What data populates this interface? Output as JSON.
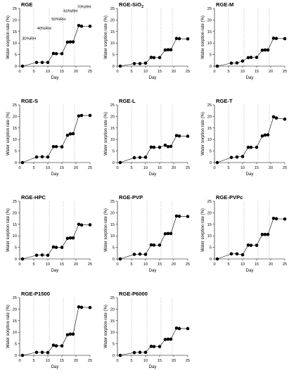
{
  "chart_data": [
    {
      "type": "line",
      "title": "RGE",
      "xlabel": "Day",
      "ylabel": "Water sorption rate (%)",
      "xlim": [
        0,
        25
      ],
      "ylim": [
        0,
        25
      ],
      "xticks": [
        "0",
        "5",
        "10",
        "15",
        "20",
        "25"
      ],
      "yticks": [
        "0",
        "5",
        "10",
        "15",
        "20",
        "25"
      ],
      "stage_boundaries": [
        5,
        10.5,
        15.5,
        19.5
      ],
      "stage_labels": [
        {
          "text": "30%RH",
          "x": 0.8,
          "y": 11.5
        },
        {
          "text": "40%RH",
          "x": 6.2,
          "y": 15.8
        },
        {
          "text": "50%RH",
          "x": 11.3,
          "y": 19.8
        },
        {
          "text": "60%RH",
          "x": 15.6,
          "y": 23.3
        },
        {
          "text": "70%RH",
          "x": 20.4,
          "y": 25.2
        }
      ],
      "series": [
        {
          "x": [
            1,
            6,
            8,
            10,
            12,
            13,
            15,
            17,
            18,
            19,
            21,
            22,
            25
          ],
          "y": [
            0,
            1.6,
            1.6,
            1.6,
            5.5,
            5.4,
            5.4,
            10.4,
            10.5,
            10.5,
            17.6,
            17.3,
            17.3
          ]
        }
      ]
    },
    {
      "type": "line",
      "title": "RGE-SiO",
      "title_subscript": "2",
      "xlabel": "Day",
      "ylabel": "Water sorption rate (%)",
      "xlim": [
        0,
        25
      ],
      "ylim": [
        0,
        25
      ],
      "xticks": [
        "0",
        "5",
        "10",
        "15",
        "20",
        "25"
      ],
      "yticks": [
        "0",
        "5",
        "10",
        "15",
        "20",
        "25"
      ],
      "stage_boundaries": [
        5,
        10.5,
        15.5,
        19.5
      ],
      "series": [
        {
          "x": [
            1,
            6,
            8,
            10,
            12,
            13,
            15,
            17,
            18,
            19,
            21,
            22,
            25
          ],
          "y": [
            0,
            1.1,
            1.1,
            1.3,
            3.8,
            3.7,
            3.7,
            7.0,
            7.1,
            7.1,
            12.0,
            11.9,
            11.8
          ]
        }
      ]
    },
    {
      "type": "line",
      "title": "RGE-M",
      "xlabel": "Day",
      "ylabel": "Water sorption rate (%)",
      "xlim": [
        0,
        25
      ],
      "ylim": [
        0,
        25
      ],
      "xticks": [
        "0",
        "5",
        "10",
        "15",
        "20",
        "25"
      ],
      "yticks": [
        "0",
        "5",
        "10",
        "15",
        "20",
        "25"
      ],
      "stage_boundaries": [
        5,
        10.5,
        15.5,
        19.5
      ],
      "series": [
        {
          "x": [
            1,
            6,
            8,
            10,
            12,
            13,
            15,
            17,
            18,
            19,
            21,
            22,
            25
          ],
          "y": [
            0,
            1.3,
            1.4,
            2.2,
            3.7,
            3.8,
            3.8,
            6.9,
            7.0,
            7.0,
            12.1,
            12.0,
            11.9
          ]
        }
      ]
    },
    {
      "type": "line",
      "title": "RGE-S",
      "xlabel": "Day",
      "ylabel": "Water sorption rate (%)",
      "xlim": [
        0,
        25
      ],
      "ylim": [
        0,
        25
      ],
      "xticks": [
        "0",
        "5",
        "10",
        "15",
        "20",
        "25"
      ],
      "yticks": [
        "0",
        "5",
        "10",
        "15",
        "20",
        "25"
      ],
      "stage_boundaries": [
        5,
        10.5,
        15.5,
        19.5
      ],
      "series": [
        {
          "x": [
            1,
            6,
            8,
            10,
            12,
            13,
            15,
            17,
            18,
            19,
            21,
            22,
            25
          ],
          "y": [
            0,
            2.4,
            2.5,
            2.4,
            6.9,
            6.9,
            6.8,
            11.8,
            12.4,
            12.5,
            20.2,
            20.4,
            20.4
          ]
        }
      ]
    },
    {
      "type": "line",
      "title": "RGE-L",
      "xlabel": "Day",
      "ylabel": "Water sorption rate (%)",
      "xlim": [
        0,
        25
      ],
      "ylim": [
        0,
        25
      ],
      "xticks": [
        "0",
        "5",
        "10",
        "15",
        "20",
        "25"
      ],
      "yticks": [
        "0",
        "5",
        "10",
        "15",
        "20",
        "25"
      ],
      "stage_boundaries": [
        5,
        10.5,
        15.5,
        19.5
      ],
      "series": [
        {
          "x": [
            1,
            6,
            8,
            10,
            12,
            13,
            15,
            17,
            18,
            19,
            21,
            22,
            25
          ],
          "y": [
            0,
            2.1,
            2.2,
            2.3,
            6.7,
            6.6,
            6.6,
            7.5,
            6.9,
            7.0,
            11.7,
            11.5,
            11.4
          ]
        }
      ]
    },
    {
      "type": "line",
      "title": "RGE-T",
      "xlabel": "Day",
      "ylabel": "Water sorption rate (%)",
      "xlim": [
        0,
        25
      ],
      "ylim": [
        0,
        25
      ],
      "xticks": [
        "0",
        "5",
        "10",
        "15",
        "20",
        "25"
      ],
      "yticks": [
        "0",
        "5",
        "10",
        "15",
        "20",
        "25"
      ],
      "stage_boundaries": [
        5,
        10.5,
        15.5,
        19.5
      ],
      "series": [
        {
          "x": [
            1,
            6,
            8,
            10,
            12,
            13,
            15,
            17,
            18,
            19,
            21,
            22,
            25
          ],
          "y": [
            0,
            2.2,
            2.4,
            2.6,
            6.6,
            6.6,
            6.6,
            11.5,
            11.9,
            12.0,
            19.8,
            19.3,
            18.8
          ]
        }
      ]
    },
    {
      "type": "line",
      "title": "RGE-HPC",
      "xlabel": "Day",
      "ylabel": "Water sorption rate (%)",
      "xlim": [
        0,
        25
      ],
      "ylim": [
        0,
        25
      ],
      "xticks": [
        "0",
        "5",
        "10",
        "15",
        "20",
        "25"
      ],
      "yticks": [
        "0",
        "5",
        "10",
        "15",
        "20",
        "25"
      ],
      "stage_boundaries": [
        5,
        10.5,
        15.5,
        19.5
      ],
      "series": [
        {
          "x": [
            1,
            6,
            8,
            10,
            12,
            13,
            15,
            17,
            18,
            19,
            21,
            22,
            25
          ],
          "y": [
            0,
            1.6,
            1.7,
            1.6,
            5.2,
            5.0,
            5.0,
            8.9,
            9.1,
            9.1,
            15.0,
            14.7,
            14.8
          ]
        }
      ]
    },
    {
      "type": "line",
      "title": "RGE-PVP",
      "xlabel": "Day",
      "ylabel": "Water sorption rate (%)",
      "xlim": [
        0,
        25
      ],
      "ylim": [
        0,
        25
      ],
      "xticks": [
        "0",
        "5",
        "10",
        "15",
        "20",
        "25"
      ],
      "yticks": [
        "0",
        "5",
        "10",
        "15",
        "20",
        "25"
      ],
      "stage_boundaries": [
        5,
        10.5,
        15.5,
        19.5
      ],
      "series": [
        {
          "x": [
            1,
            6,
            8,
            10,
            12,
            13,
            15,
            17,
            18,
            19,
            21,
            22,
            25
          ],
          "y": [
            0,
            2.0,
            2.1,
            2.0,
            6.1,
            6.0,
            6.0,
            10.9,
            11.0,
            11.0,
            18.6,
            18.5,
            18.4
          ]
        }
      ]
    },
    {
      "type": "line",
      "title": "RGE-PVPc",
      "xlabel": "Day",
      "ylabel": "Water sorption rate (%)",
      "xlim": [
        0,
        25
      ],
      "ylim": [
        0,
        25
      ],
      "xticks": [
        "0",
        "5",
        "10",
        "15",
        "20",
        "25"
      ],
      "yticks": [
        "0",
        "5",
        "10",
        "15",
        "20",
        "25"
      ],
      "stage_boundaries": [
        5,
        10.5,
        15.5,
        19.5
      ],
      "series": [
        {
          "x": [
            1,
            6,
            8,
            10,
            12,
            13,
            15,
            17,
            18,
            19,
            21,
            22,
            25
          ],
          "y": [
            0,
            2.2,
            2.2,
            1.8,
            6.0,
            5.9,
            5.9,
            10.6,
            10.6,
            10.6,
            17.6,
            17.4,
            17.3
          ]
        }
      ]
    },
    {
      "type": "line",
      "title": "RGE-P1500",
      "xlabel": "Day",
      "ylabel": "Water sorption rate (%)",
      "xlim": [
        0,
        25
      ],
      "ylim": [
        0,
        25
      ],
      "xticks": [
        "0",
        "5",
        "10",
        "15",
        "20",
        "25"
      ],
      "yticks": [
        "0",
        "5",
        "10",
        "15",
        "20",
        "25"
      ],
      "stage_boundaries": [
        5,
        10.5,
        15.5,
        19.5
      ],
      "series": [
        {
          "x": [
            1,
            6,
            8,
            10,
            12,
            13,
            15,
            17,
            18,
            19,
            21,
            22,
            25
          ],
          "y": [
            0,
            1.3,
            1.3,
            1.2,
            4.4,
            4.1,
            4.1,
            8.9,
            9.2,
            9.2,
            21.0,
            20.8,
            20.7
          ]
        }
      ]
    },
    {
      "type": "line",
      "title": "RGE-P6000",
      "xlabel": "Day",
      "ylabel": "Water sorption rate (%)",
      "xlim": [
        0,
        25
      ],
      "ylim": [
        0,
        25
      ],
      "xticks": [
        "0",
        "5",
        "10",
        "15",
        "20",
        "25"
      ],
      "yticks": [
        "0",
        "5",
        "10",
        "15",
        "20",
        "25"
      ],
      "stage_boundaries": [
        5,
        10.5,
        15.5,
        19.5
      ],
      "series": [
        {
          "x": [
            1,
            6,
            8,
            10,
            12,
            13,
            15,
            17,
            18,
            19,
            21,
            22,
            25
          ],
          "y": [
            0,
            1.2,
            1.3,
            1.3,
            3.9,
            3.8,
            3.8,
            6.9,
            7.0,
            7.0,
            11.8,
            11.6,
            11.6
          ]
        }
      ]
    }
  ]
}
